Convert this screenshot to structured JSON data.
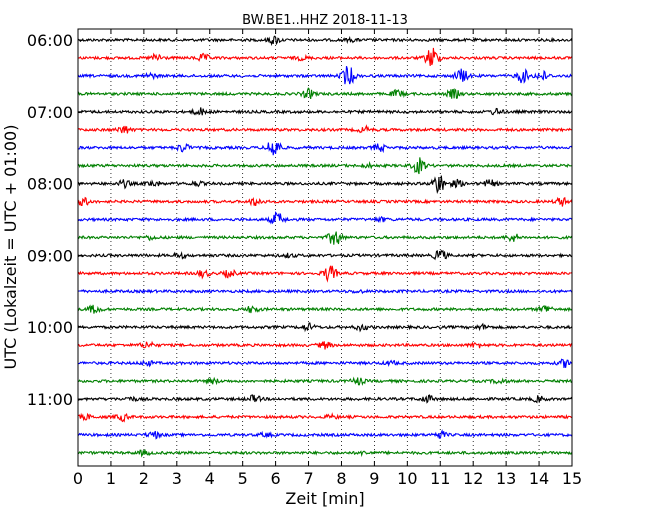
{
  "chart_data": {
    "type": "line",
    "title": "BW.BE1..HHZ 2018-11-13",
    "xlabel": "Zeit  [min]",
    "ylabel": "UTC (Lokalzeit = UTC + 01:00)",
    "xlim": [
      0,
      15
    ],
    "x_ticks": [
      "0",
      "1",
      "2",
      "3",
      "4",
      "5",
      "6",
      "7",
      "8",
      "9",
      "10",
      "11",
      "12",
      "13",
      "14",
      "15"
    ],
    "y_ticks": [
      "06:00",
      "07:00",
      "08:00",
      "09:00",
      "10:00",
      "11:00"
    ],
    "grid": "vertical dotted",
    "colors": [
      "#000000",
      "#ff0000",
      "#0000ff",
      "#008000"
    ],
    "rows": [
      {
        "start": "06:00",
        "color": "#000000",
        "events": [
          {
            "t": 5.95,
            "amp": 0.35
          },
          {
            "t": 8.3,
            "amp": 0.12
          }
        ]
      },
      {
        "start": "06:15",
        "color": "#ff0000",
        "events": [
          {
            "t": 2.4,
            "amp": 0.35
          },
          {
            "t": 3.8,
            "amp": 0.3
          },
          {
            "t": 10.75,
            "amp": 1.0
          },
          {
            "t": 6.8,
            "amp": 0.15
          }
        ]
      },
      {
        "start": "06:30",
        "color": "#0000ff",
        "events": [
          {
            "t": 8.2,
            "amp": 0.9
          },
          {
            "t": 11.65,
            "amp": 0.6
          },
          {
            "t": 13.5,
            "amp": 0.6
          },
          {
            "t": 14.1,
            "amp": 0.4
          },
          {
            "t": 2.2,
            "amp": 0.2
          }
        ]
      },
      {
        "start": "06:45",
        "color": "#008000",
        "events": [
          {
            "t": 7.0,
            "amp": 0.4
          },
          {
            "t": 9.7,
            "amp": 0.3
          },
          {
            "t": 11.4,
            "amp": 0.4
          }
        ]
      },
      {
        "start": "07:00",
        "color": "#000000",
        "events": [
          {
            "t": 3.7,
            "amp": 0.3
          },
          {
            "t": 12.7,
            "amp": 0.25
          }
        ]
      },
      {
        "start": "07:15",
        "color": "#ff0000",
        "events": [
          {
            "t": 1.4,
            "amp": 0.35
          },
          {
            "t": 8.7,
            "amp": 0.25
          }
        ]
      },
      {
        "start": "07:30",
        "color": "#0000ff",
        "events": [
          {
            "t": 3.2,
            "amp": 0.35
          },
          {
            "t": 5.95,
            "amp": 1.0
          },
          {
            "t": 9.15,
            "amp": 0.3
          }
        ]
      },
      {
        "start": "07:45",
        "color": "#008000",
        "events": [
          {
            "t": 10.35,
            "amp": 0.7
          },
          {
            "t": 8.8,
            "amp": 0.15
          }
        ]
      },
      {
        "start": "08:00",
        "color": "#000000",
        "events": [
          {
            "t": 1.4,
            "amp": 0.3
          },
          {
            "t": 2.3,
            "amp": 0.25
          },
          {
            "t": 3.6,
            "amp": 0.2
          },
          {
            "t": 10.95,
            "amp": 0.9
          },
          {
            "t": 11.5,
            "amp": 0.3
          },
          {
            "t": 12.5,
            "amp": 0.3
          }
        ]
      },
      {
        "start": "08:15",
        "color": "#ff0000",
        "events": [
          {
            "t": 0.15,
            "amp": 0.35
          },
          {
            "t": 5.4,
            "amp": 0.35
          },
          {
            "t": 14.7,
            "amp": 0.35
          }
        ]
      },
      {
        "start": "08:30",
        "color": "#0000ff",
        "events": [
          {
            "t": 6.05,
            "amp": 0.6
          },
          {
            "t": 9.2,
            "amp": 0.15
          }
        ]
      },
      {
        "start": "08:45",
        "color": "#008000",
        "events": [
          {
            "t": 7.8,
            "amp": 0.75
          },
          {
            "t": 13.2,
            "amp": 0.35
          },
          {
            "t": 2.2,
            "amp": 0.15
          }
        ]
      },
      {
        "start": "09:00",
        "color": "#000000",
        "events": [
          {
            "t": 11.0,
            "amp": 0.5
          },
          {
            "t": 3.1,
            "amp": 0.2
          },
          {
            "t": 6.4,
            "amp": 0.15
          }
        ]
      },
      {
        "start": "09:15",
        "color": "#ff0000",
        "events": [
          {
            "t": 3.8,
            "amp": 0.3
          },
          {
            "t": 4.6,
            "amp": 0.3
          },
          {
            "t": 7.65,
            "amp": 0.7
          }
        ]
      },
      {
        "start": "09:30",
        "color": "#0000ff",
        "events": [
          {
            "t": 8.5,
            "amp": 0.1
          }
        ]
      },
      {
        "start": "09:45",
        "color": "#008000",
        "events": [
          {
            "t": 0.5,
            "amp": 0.35
          },
          {
            "t": 5.3,
            "amp": 0.3
          },
          {
            "t": 14.2,
            "amp": 0.35
          }
        ]
      },
      {
        "start": "10:00",
        "color": "#000000",
        "events": [
          {
            "t": 7.0,
            "amp": 0.3
          },
          {
            "t": 8.6,
            "amp": 0.25
          },
          {
            "t": 12.3,
            "amp": 0.2
          }
        ]
      },
      {
        "start": "10:15",
        "color": "#ff0000",
        "events": [
          {
            "t": 2.1,
            "amp": 0.3
          },
          {
            "t": 7.5,
            "amp": 0.3
          },
          {
            "t": 12.1,
            "amp": 0.2
          }
        ]
      },
      {
        "start": "10:30",
        "color": "#0000ff",
        "events": [
          {
            "t": 2.1,
            "amp": 0.2
          },
          {
            "t": 14.8,
            "amp": 0.35
          },
          {
            "t": 9.5,
            "amp": 0.15
          }
        ]
      },
      {
        "start": "10:45",
        "color": "#008000",
        "events": [
          {
            "t": 8.5,
            "amp": 0.3
          },
          {
            "t": 4.1,
            "amp": 0.2
          },
          {
            "t": 12.8,
            "amp": 0.2
          }
        ]
      },
      {
        "start": "11:00",
        "color": "#000000",
        "events": [
          {
            "t": 5.35,
            "amp": 0.3
          },
          {
            "t": 10.6,
            "amp": 0.3
          },
          {
            "t": 14.0,
            "amp": 0.25
          },
          {
            "t": 1.6,
            "amp": 0.15
          }
        ]
      },
      {
        "start": "11:15",
        "color": "#ff0000",
        "events": [
          {
            "t": 1.35,
            "amp": 0.3
          },
          {
            "t": 0.25,
            "amp": 0.2
          },
          {
            "t": 7.7,
            "amp": 0.15
          }
        ]
      },
      {
        "start": "11:30",
        "color": "#0000ff",
        "events": [
          {
            "t": 2.3,
            "amp": 0.3
          },
          {
            "t": 11.0,
            "amp": 0.3
          },
          {
            "t": 5.7,
            "amp": 0.15
          }
        ]
      },
      {
        "start": "11:45",
        "color": "#008000",
        "events": [
          {
            "t": 2.0,
            "amp": 0.2
          },
          {
            "t": 8.7,
            "amp": 0.12
          }
        ]
      }
    ]
  }
}
